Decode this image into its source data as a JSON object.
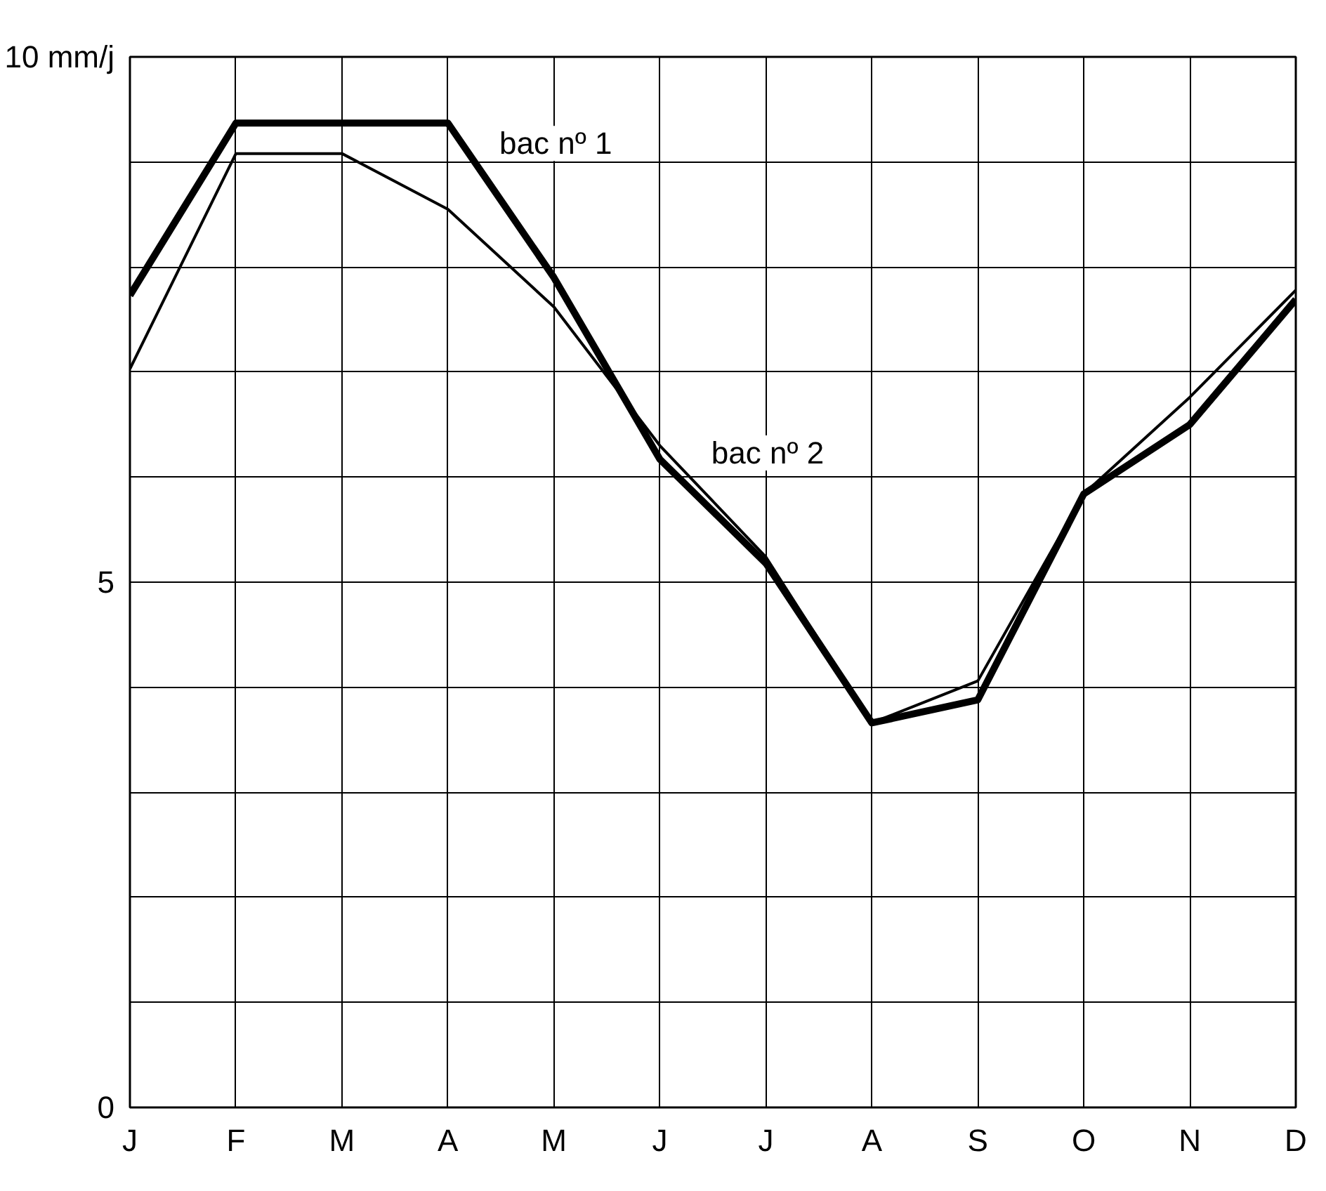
{
  "chart_data": {
    "type": "line",
    "categories": [
      "J",
      "F",
      "M",
      "A",
      "M",
      "J",
      "J",
      "A",
      "S",
      "O",
      "N",
      "D"
    ],
    "series": [
      {
        "name": "bac nº 1",
        "color": "#000000",
        "values": [
          7.73,
          9.37,
          9.37,
          9.37,
          7.9,
          6.17,
          5.18,
          3.66,
          3.88,
          5.84,
          6.5,
          7.69
        ]
      },
      {
        "name": "bac nº 2",
        "color": "#000000",
        "values": [
          7.03,
          9.08,
          9.08,
          8.55,
          7.62,
          6.3,
          5.24,
          3.66,
          4.06,
          5.84,
          6.76,
          7.78
        ]
      }
    ],
    "ylim": [
      0,
      10
    ],
    "yticks": [
      0,
      {
        "value": 1,
        "label": null
      },
      {
        "value": 2,
        "label": null
      },
      {
        "value": 3,
        "label": null
      },
      {
        "value": 4,
        "label": null
      },
      5,
      {
        "value": 6,
        "label": null
      },
      {
        "value": 7,
        "label": null
      },
      {
        "value": 8,
        "label": null
      },
      {
        "value": 9,
        "label": null
      },
      {
        "value": 10,
        "label": "10 mm/j"
      }
    ],
    "grid": true,
    "marker": "none",
    "line_style": "solid"
  }
}
